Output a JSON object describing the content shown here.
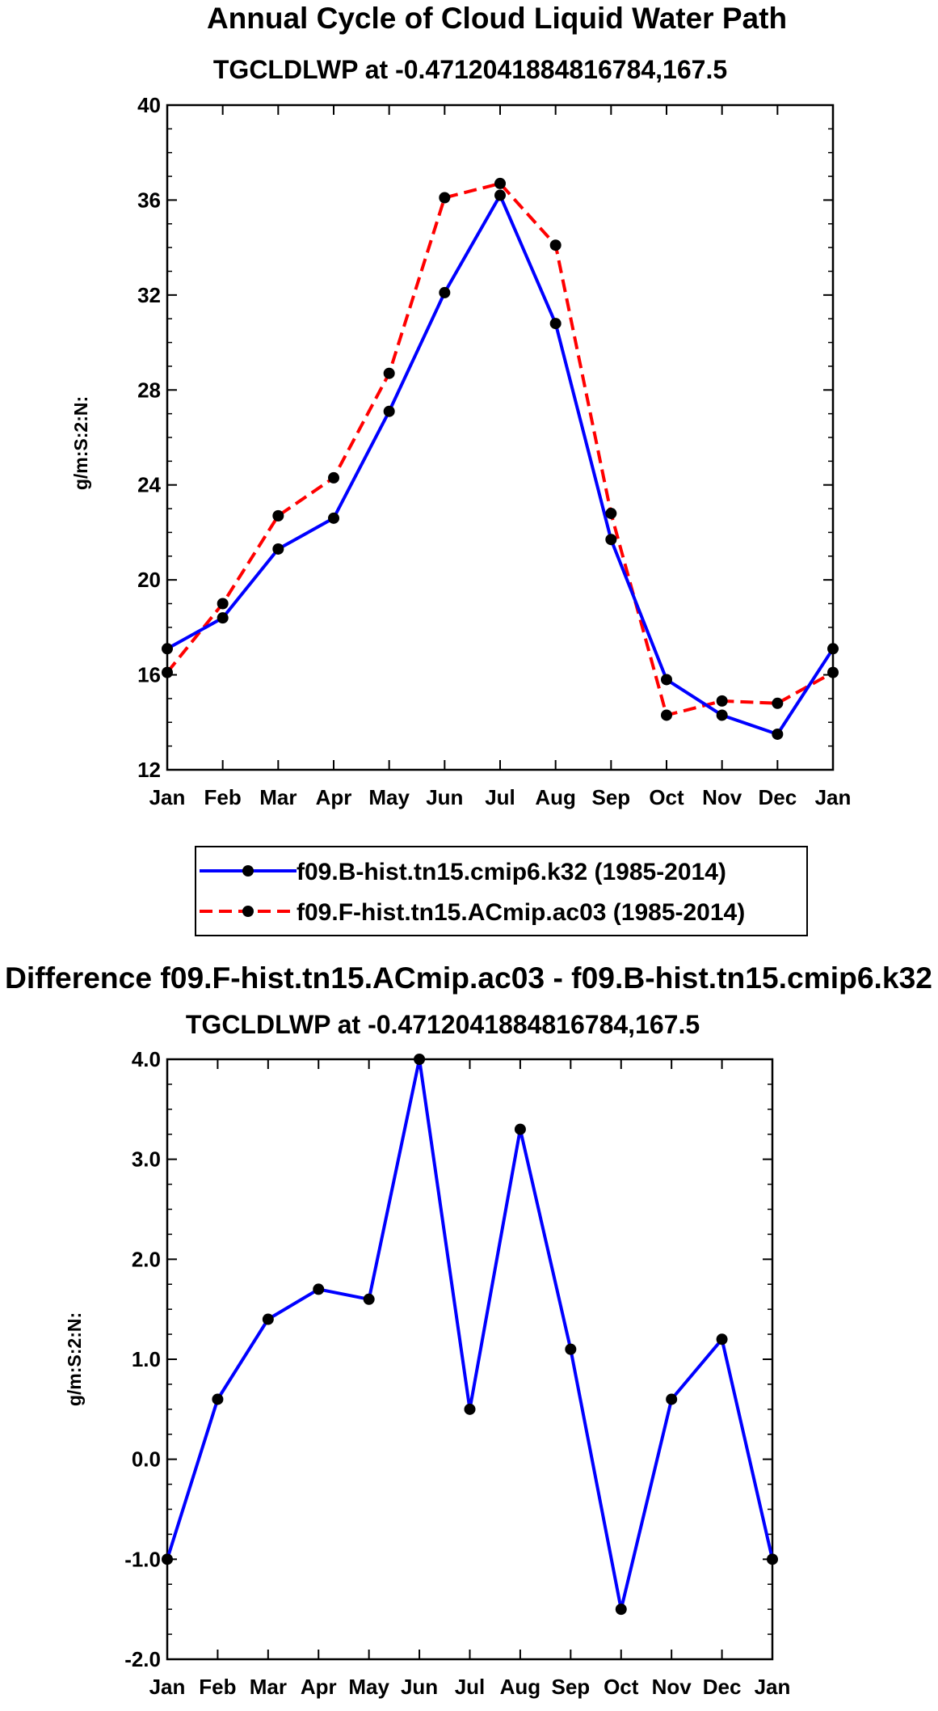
{
  "chart_data": [
    {
      "type": "line",
      "title": "Annual Cycle of Cloud Liquid Water Path",
      "subtitle": "TGCLDLWP at -0.4712041884816784,167.5",
      "xlabel": "",
      "ylabel": "g/m:S:2:N:",
      "categories": [
        "Jan",
        "Feb",
        "Mar",
        "Apr",
        "May",
        "Jun",
        "Jul",
        "Aug",
        "Sep",
        "Oct",
        "Nov",
        "Dec",
        "Jan"
      ],
      "ylim": [
        12,
        40
      ],
      "yticks": [
        "12",
        "16",
        "20",
        "24",
        "28",
        "32",
        "36",
        "40"
      ],
      "grid": false,
      "legend_position": "below",
      "series": [
        {
          "name": "f09.B-hist.tn15.cmip6.k32 (1985-2014)",
          "color": "#0000ff",
          "style": "solid",
          "values": [
            17.1,
            18.4,
            21.3,
            22.6,
            27.1,
            32.1,
            36.2,
            30.8,
            21.7,
            15.8,
            14.3,
            13.5,
            17.1
          ]
        },
        {
          "name": "f09.F-hist.tn15.ACmip.ac03 (1985-2014)",
          "color": "#ff0000",
          "style": "dashed",
          "values": [
            16.1,
            19.0,
            22.7,
            24.3,
            28.7,
            36.1,
            36.7,
            34.1,
            22.8,
            14.3,
            14.9,
            14.8,
            16.1
          ]
        }
      ]
    },
    {
      "type": "line",
      "title": "Difference f09.F-hist.tn15.ACmip.ac03 - f09.B-hist.tn15.cmip6.k32",
      "subtitle": "TGCLDLWP at -0.4712041884816784,167.5",
      "xlabel": "",
      "ylabel": "g/m:S:2:N:",
      "categories": [
        "Jan",
        "Feb",
        "Mar",
        "Apr",
        "May",
        "Jun",
        "Jul",
        "Aug",
        "Sep",
        "Oct",
        "Nov",
        "Dec",
        "Jan"
      ],
      "ylim": [
        -2.0,
        4.0
      ],
      "yticks": [
        "-2.0",
        "-1.0",
        "0.0",
        "1.0",
        "2.0",
        "3.0",
        "4.0"
      ],
      "grid": false,
      "series": [
        {
          "name": "Difference",
          "color": "#0000ff",
          "style": "solid",
          "values": [
            -1.0,
            0.6,
            1.4,
            1.7,
            1.6,
            4.0,
            0.5,
            3.3,
            1.1,
            -1.5,
            0.6,
            1.2,
            -1.0
          ]
        }
      ]
    }
  ]
}
